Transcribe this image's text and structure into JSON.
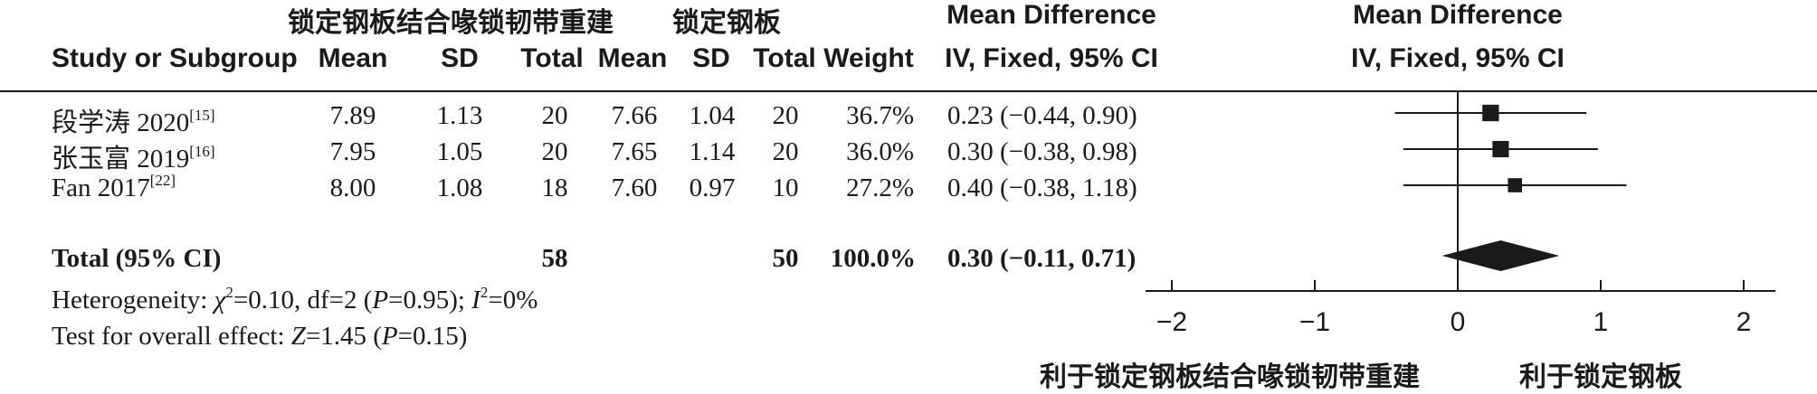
{
  "header": {
    "group1_title": "锁定钢板结合喙锁韧带重建",
    "group2_title": "锁定钢板",
    "md_title": "Mean Difference",
    "md_method": "IV, Fixed, 95% CI",
    "plot_title": "Mean Difference",
    "plot_method": "IV, Fixed, 95% CI",
    "study_col": "Study or Subgroup",
    "mean1": "Mean",
    "sd1": "SD",
    "total1": "Total",
    "mean2": "Mean",
    "sd2": "SD",
    "total2": "Total",
    "weight": "Weight"
  },
  "studies": [
    {
      "name": "段学涛 2020",
      "ref": "[15]",
      "mean1": "7.89",
      "sd1": "1.13",
      "n1": "20",
      "mean2": "7.66",
      "sd2": "1.04",
      "n2": "20",
      "weight": "36.7%",
      "ci_text": "0.23 (−0.44, 0.90)"
    },
    {
      "name": "张玉富 2019",
      "ref": "[16]",
      "mean1": "7.95",
      "sd1": "1.05",
      "n1": "20",
      "mean2": "7.65",
      "sd2": "1.14",
      "n2": "20",
      "weight": "36.0%",
      "ci_text": "0.30 (−0.38, 0.98)"
    },
    {
      "name": "Fan 2017",
      "ref": "[22]",
      "mean1": "8.00",
      "sd1": "1.08",
      "n1": "18",
      "mean2": "7.60",
      "sd2": "0.97",
      "n2": "10",
      "weight": "27.2%",
      "ci_text": "0.40 (−0.38, 1.18)"
    }
  ],
  "total": {
    "label": "Total (95% CI)",
    "n1": "58",
    "n2": "50",
    "weight": "100.0%",
    "ci_text": "0.30 (−0.11, 0.71)"
  },
  "heterogeneity": {
    "prefix": "Heterogeneity: ",
    "chi_symbol": "χ",
    "chi_value": "=0.10, df=2 (",
    "p_label": "P",
    "p_value": "=0.95); ",
    "i_label": "I",
    "i_value": "=0%"
  },
  "overall_effect": {
    "prefix": "Test for overall effect: ",
    "z_label": "Z",
    "z_value": "=1.45 (",
    "p_label": "P",
    "p_value": "=0.15)"
  },
  "axis": {
    "favours_left": "利于锁定钢板结合喙锁韧带重建",
    "favours_right": "利于锁定钢板"
  },
  "chart_data": {
    "type": "forest",
    "x_range": [
      -2,
      2
    ],
    "ticks": [
      -2,
      -1,
      0,
      1,
      2
    ],
    "tick_labels": [
      "−2",
      "−1",
      "0",
      "1",
      "2"
    ],
    "studies": [
      {
        "md": 0.23,
        "lower": -0.44,
        "upper": 0.9,
        "weight": 36.7
      },
      {
        "md": 0.3,
        "lower": -0.38,
        "upper": 0.98,
        "weight": 36.0
      },
      {
        "md": 0.4,
        "lower": -0.38,
        "upper": 1.18,
        "weight": 27.2
      }
    ],
    "pooled": {
      "md": 0.3,
      "lower": -0.11,
      "upper": 0.71
    },
    "marker_color": "#1a1a1a"
  }
}
